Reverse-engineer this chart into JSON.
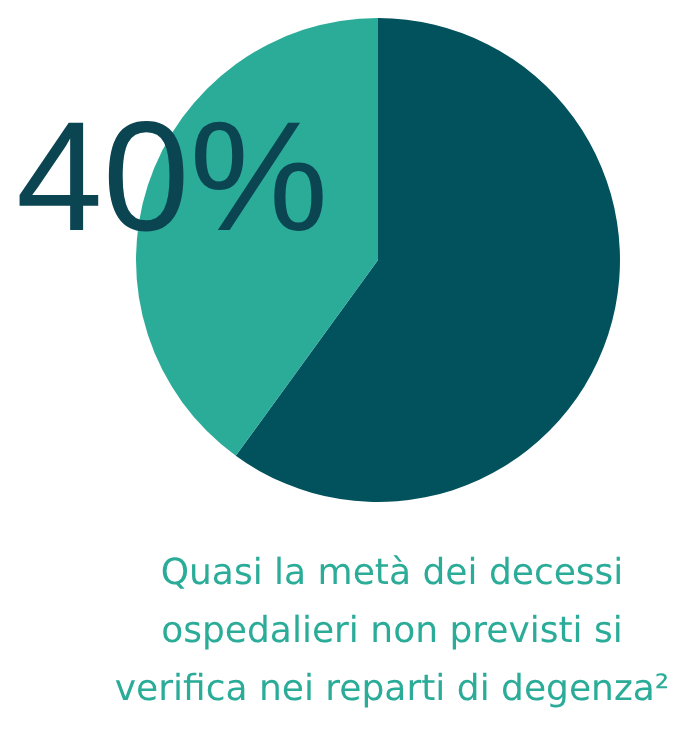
{
  "chart_data": {
    "type": "pie",
    "categories": [
      null,
      null
    ],
    "values": [
      60,
      40
    ],
    "colors": [
      "#02525d",
      "#2aac98"
    ],
    "value_labels": [
      null,
      "40%"
    ],
    "annotations": [
      "Quasi la metà dei decessi",
      "ospedalieri non previsti si",
      "verifica nei reparti di degenza²"
    ]
  }
}
